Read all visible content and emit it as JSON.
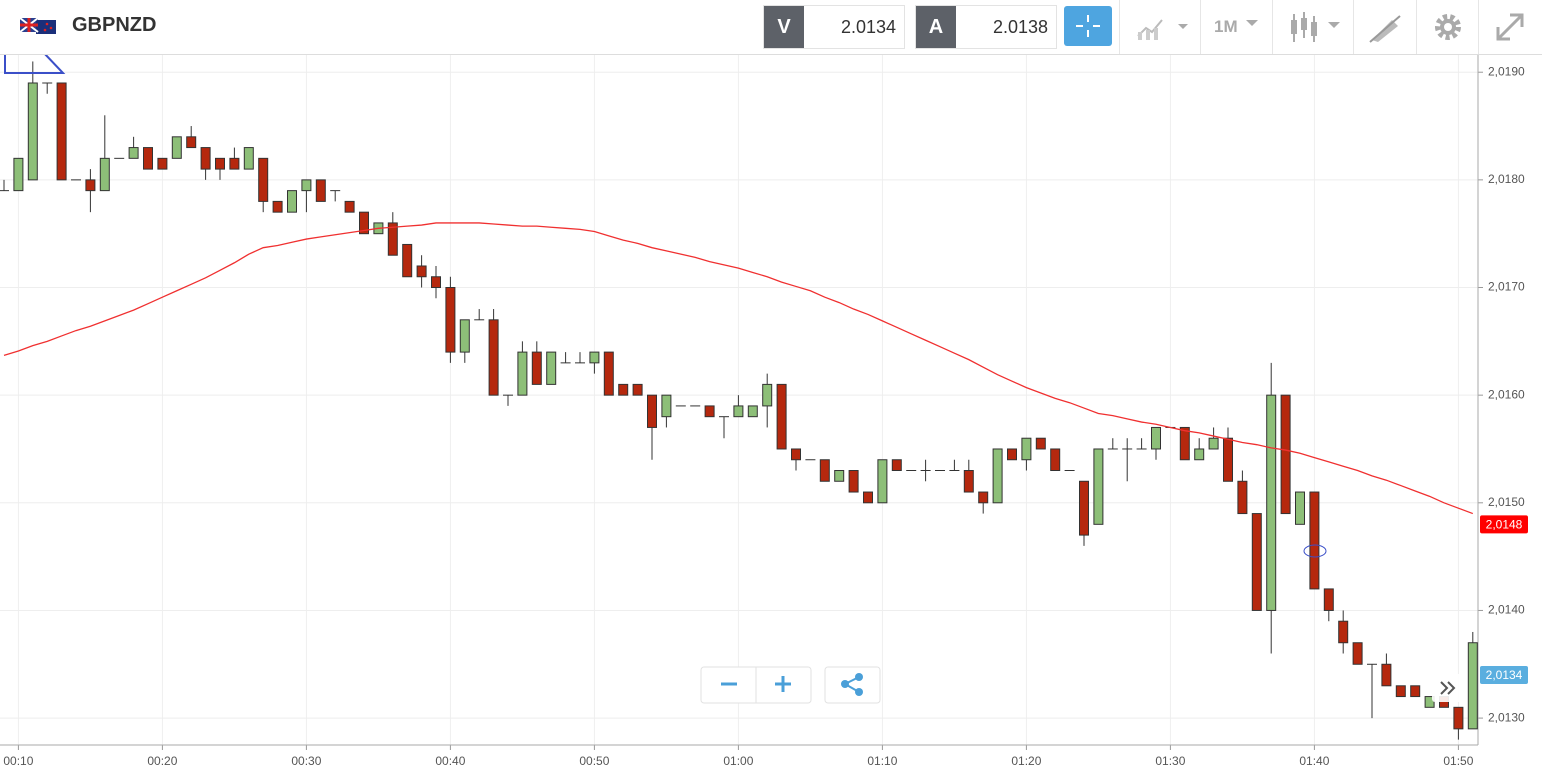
{
  "toolbar": {
    "symbol": "GBPNZD",
    "bid_letter": "V",
    "bid": "2.0134",
    "ask_letter": "A",
    "ask": "2.0138",
    "timeframe": "1M"
  },
  "chart_data": {
    "type": "candlestick",
    "categories": [
      null,
      "00:10",
      null,
      null,
      null,
      null,
      null,
      null,
      null,
      null,
      null,
      "00:20",
      null,
      null,
      null,
      null,
      null,
      null,
      null,
      null,
      null,
      "00:30",
      null,
      null,
      null,
      null,
      null,
      null,
      null,
      null,
      null,
      "00:40",
      null,
      null,
      null,
      null,
      null,
      null,
      null,
      null,
      null,
      "00:50",
      null,
      null,
      null,
      null,
      null,
      null,
      null,
      null,
      null,
      "01:00",
      null,
      null,
      null,
      null,
      null,
      null,
      null,
      null,
      null,
      "01:10",
      null,
      null,
      null,
      null,
      null,
      null,
      null,
      null,
      null,
      "01:20",
      null,
      null,
      null,
      null,
      null,
      null,
      null,
      null,
      null,
      "01:30",
      null,
      null,
      null,
      null,
      null,
      null,
      null,
      null,
      null,
      "01:40",
      null,
      null,
      null,
      null,
      null,
      null,
      null,
      null,
      null,
      "01:50",
      null
    ],
    "open": [
      2.0179,
      2.0179,
      2.018,
      2.0189,
      2.0189,
      2.018,
      2.018,
      2.0179,
      2.0182,
      2.0182,
      2.0183,
      2.0182,
      2.0182,
      2.0184,
      2.0183,
      2.0182,
      2.0182,
      2.0181,
      2.0182,
      2.0178,
      2.0177,
      2.0179,
      2.018,
      2.0179,
      2.0178,
      2.0177,
      2.0175,
      2.0176,
      2.0174,
      2.0172,
      2.0171,
      2.017,
      2.0164,
      2.0167,
      2.0167,
      2.016,
      2.016,
      2.0164,
      2.0161,
      2.0163,
      2.0163,
      2.0163,
      2.0164,
      2.0161,
      2.0161,
      2.016,
      2.0158,
      2.0159,
      2.0159,
      2.0159,
      2.0158,
      2.0158,
      2.0158,
      2.0159,
      2.0161,
      2.0155,
      2.0154,
      2.0154,
      2.0152,
      2.0153,
      2.0151,
      2.015,
      2.0154,
      2.0153,
      2.0153,
      2.0153,
      2.0153,
      2.0153,
      2.0151,
      2.015,
      2.0155,
      2.0154,
      2.0156,
      2.0155,
      2.0153,
      2.0152,
      2.0148,
      2.0155,
      2.0155,
      2.0155,
      2.0155,
      2.0157,
      2.0157,
      2.0154,
      2.0155,
      2.0156,
      2.0152,
      2.0149,
      2.014,
      2.016,
      2.0148,
      2.0151,
      2.0142,
      2.0139,
      2.0137,
      2.0135,
      2.0135,
      2.0133,
      2.0133,
      2.0131,
      2.0132,
      2.0131,
      2.0129
    ],
    "high": [
      2.018,
      2.0182,
      2.0191,
      2.0189,
      2.0189,
      2.018,
      2.0181,
      2.0186,
      2.0182,
      2.0184,
      2.0183,
      2.0182,
      2.0184,
      2.0185,
      2.0183,
      2.0182,
      2.0183,
      2.0183,
      2.0182,
      2.0178,
      2.0179,
      2.018,
      2.018,
      2.0179,
      2.0178,
      2.0177,
      2.0176,
      2.0177,
      2.0174,
      2.0173,
      2.0172,
      2.0171,
      2.0167,
      2.0168,
      2.0168,
      2.016,
      2.0165,
      2.0165,
      2.0164,
      2.0164,
      2.0164,
      2.0164,
      2.0164,
      2.0161,
      2.0161,
      2.016,
      2.016,
      2.0159,
      2.0159,
      2.0159,
      2.0158,
      2.016,
      2.0159,
      2.0162,
      2.0161,
      2.0155,
      2.0154,
      2.0154,
      2.0153,
      2.0153,
      2.0151,
      2.0154,
      2.0154,
      2.0153,
      2.0154,
      2.0153,
      2.0154,
      2.0154,
      2.0151,
      2.0155,
      2.0155,
      2.0156,
      2.0156,
      2.0155,
      2.0153,
      2.0152,
      2.0155,
      2.0156,
      2.0156,
      2.0156,
      2.0157,
      2.0157,
      2.0157,
      2.0156,
      2.0157,
      2.0157,
      2.0153,
      2.0149,
      2.0163,
      2.016,
      2.0151,
      2.0151,
      2.0142,
      2.014,
      2.0137,
      2.0135,
      2.0136,
      2.0133,
      2.0133,
      2.0132,
      2.0132,
      2.0131,
      2.0138
    ],
    "low": [
      2.0179,
      2.0179,
      2.018,
      2.0188,
      2.018,
      2.018,
      2.0177,
      2.0179,
      2.0182,
      2.0182,
      2.0181,
      2.0181,
      2.0182,
      2.0183,
      2.018,
      2.018,
      2.0181,
      2.0181,
      2.0177,
      2.0177,
      2.0177,
      2.0177,
      2.0178,
      2.0178,
      2.0177,
      2.0175,
      2.0175,
      2.0173,
      2.0171,
      2.017,
      2.0169,
      2.0163,
      2.0163,
      2.0167,
      2.016,
      2.0159,
      2.016,
      2.0161,
      2.0161,
      2.0163,
      2.0163,
      2.0162,
      2.016,
      2.016,
      2.016,
      2.0154,
      2.0157,
      2.0159,
      2.0159,
      2.0158,
      2.0156,
      2.0158,
      2.0158,
      2.0157,
      2.0155,
      2.0153,
      2.0154,
      2.0152,
      2.0152,
      2.0151,
      2.015,
      2.015,
      2.0153,
      2.0153,
      2.0152,
      2.0153,
      2.0153,
      2.0151,
      2.0149,
      2.015,
      2.0154,
      2.0153,
      2.0155,
      2.0153,
      2.0153,
      2.0146,
      2.0148,
      2.0155,
      2.0152,
      2.0155,
      2.0154,
      2.0157,
      2.0154,
      2.0154,
      2.0155,
      2.0152,
      2.0149,
      2.014,
      2.0136,
      2.0149,
      2.0148,
      2.0142,
      2.0139,
      2.0136,
      2.0135,
      2.013,
      2.0133,
      2.0132,
      2.0132,
      2.0131,
      2.0131,
      2.0128,
      2.0129
    ],
    "close": [
      2.0179,
      2.0182,
      2.0189,
      2.0189,
      2.018,
      2.018,
      2.0179,
      2.0182,
      2.0182,
      2.0183,
      2.0181,
      2.0181,
      2.0184,
      2.0183,
      2.0181,
      2.0181,
      2.0181,
      2.0183,
      2.0178,
      2.0177,
      2.0179,
      2.018,
      2.0178,
      2.0179,
      2.0177,
      2.0175,
      2.0176,
      2.0173,
      2.0171,
      2.0171,
      2.017,
      2.0164,
      2.0167,
      2.0167,
      2.016,
      2.016,
      2.0164,
      2.0161,
      2.0164,
      2.0163,
      2.0163,
      2.0164,
      2.016,
      2.016,
      2.016,
      2.0157,
      2.016,
      2.0159,
      2.0159,
      2.0158,
      2.0158,
      2.0159,
      2.0159,
      2.0161,
      2.0155,
      2.0154,
      2.0154,
      2.0152,
      2.0153,
      2.0151,
      2.015,
      2.0154,
      2.0153,
      2.0153,
      2.0153,
      2.0153,
      2.0153,
      2.0151,
      2.015,
      2.0155,
      2.0154,
      2.0156,
      2.0155,
      2.0153,
      2.0153,
      2.0147,
      2.0155,
      2.0155,
      2.0155,
      2.0155,
      2.0157,
      2.0157,
      2.0154,
      2.0155,
      2.0156,
      2.0152,
      2.0149,
      2.014,
      2.016,
      2.0149,
      2.0151,
      2.0142,
      2.014,
      2.0137,
      2.0135,
      2.0135,
      2.0133,
      2.0132,
      2.0132,
      2.0132,
      2.0131,
      2.0129,
      2.0137
    ],
    "up_color": "#8dbf78",
    "down_color": "#b5280e",
    "line": {
      "color": "#f03030",
      "values": [
        2.01637,
        2.01641,
        2.01646,
        2.0165,
        2.01655,
        2.0166,
        2.01664,
        2.01669,
        2.01674,
        2.01679,
        2.01685,
        2.01691,
        2.01697,
        2.01703,
        2.01709,
        2.01716,
        2.01723,
        2.01731,
        2.01737,
        2.01739,
        2.01742,
        2.01745,
        2.01747,
        2.01749,
        2.01751,
        2.01753,
        2.01755,
        2.01756,
        2.01757,
        2.01758,
        2.0176,
        2.0176,
        2.0176,
        2.0176,
        2.01759,
        2.01758,
        2.01757,
        2.01757,
        2.01756,
        2.01755,
        2.01754,
        2.01752,
        2.01748,
        2.01744,
        2.01741,
        2.01737,
        2.01734,
        2.01731,
        2.01728,
        2.01724,
        2.01721,
        2.01718,
        2.01714,
        2.0171,
        2.01705,
        2.01701,
        2.01697,
        2.01691,
        2.01686,
        2.0168,
        2.01675,
        2.01669,
        2.01663,
        2.01657,
        2.01651,
        2.01645,
        2.01639,
        2.01633,
        2.01626,
        2.01619,
        2.01613,
        2.01607,
        2.01602,
        2.01597,
        2.01593,
        2.01588,
        2.01583,
        2.01581,
        2.01578,
        2.01575,
        2.01573,
        2.0157,
        2.01567,
        2.01565,
        2.01562,
        2.01559,
        2.01556,
        2.01554,
        2.01551,
        2.01549,
        2.01546,
        2.01542,
        2.01538,
        2.01534,
        2.0153,
        2.01525,
        2.01521,
        2.01516,
        2.01511,
        2.01506,
        2.015,
        2.01495,
        2.0149
      ]
    },
    "ylim": [
      2.01275,
      2.01916
    ],
    "yticks": [
      {
        "value": 2.013,
        "label": "2,0130"
      },
      {
        "value": 2.014,
        "label": "2,0140"
      },
      {
        "value": 2.015,
        "label": "2,0150"
      },
      {
        "value": 2.016,
        "label": "2,0160"
      },
      {
        "value": 2.017,
        "label": "2,0170"
      },
      {
        "value": 2.018,
        "label": "2,0180"
      },
      {
        "value": 2.019,
        "label": "2,0190"
      }
    ],
    "grid": true,
    "price_tags": [
      {
        "value": 2.0148,
        "label": "2,0148",
        "color": "#ff0000"
      },
      {
        "value": 2.0134,
        "label": "2,0134",
        "color": "#5aaedf"
      }
    ]
  }
}
